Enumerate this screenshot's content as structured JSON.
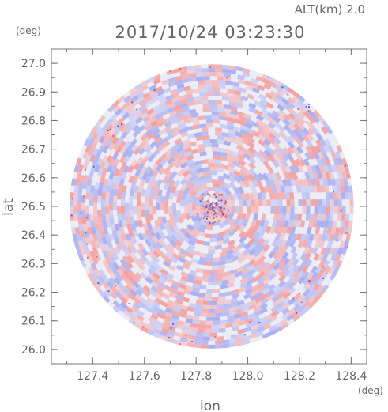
{
  "chart_data": {
    "type": "heatmap",
    "title": "2017/10/24 03:23:30",
    "altitude_label": "ALT(km) 2.0",
    "xlabel": "lon",
    "ylabel": "lat",
    "x_unit": "(deg)",
    "y_unit": "(deg)",
    "xlim": [
      127.24,
      128.46
    ],
    "ylim": [
      25.95,
      27.05
    ],
    "x_ticks": [
      "127.4",
      "127.6",
      "127.8",
      "128.0",
      "128.2",
      "128.4"
    ],
    "y_ticks": [
      "26.0",
      "26.1",
      "26.2",
      "26.3",
      "26.4",
      "26.5",
      "26.6",
      "26.7",
      "26.8",
      "26.9",
      "27.0"
    ],
    "center": [
      127.86,
      26.5
    ],
    "radius_deg": 0.55,
    "colors": {
      "positive": "#f4a0a0",
      "negative": "#a8aef0",
      "neutral": "#ececf6"
    }
  }
}
